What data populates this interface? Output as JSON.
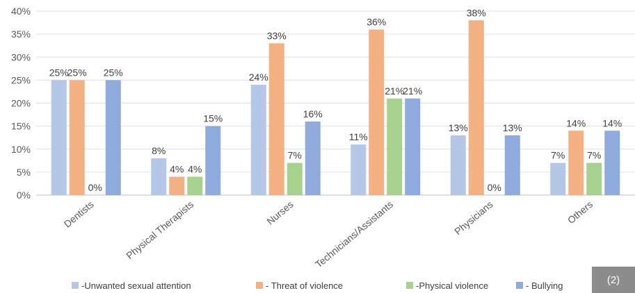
{
  "chart_data": {
    "type": "bar",
    "categories": [
      "Dentists",
      "Physical Therapists",
      "Nurses",
      "Technicians/Assistants",
      "Physicians",
      "Others"
    ],
    "series": [
      {
        "name": "-Unwanted sexual attention",
        "values": [
          25,
          8,
          24,
          11,
          13,
          7
        ],
        "labels": [
          "25%",
          "8%",
          "24%",
          "11%",
          "13%",
          "7%"
        ],
        "color": "#b4c7e7"
      },
      {
        "name": "- Threat of violence",
        "values": [
          25,
          4,
          33,
          36,
          38,
          14
        ],
        "labels": [
          "25%",
          "4%",
          "33%",
          "36%",
          "38%",
          "14%"
        ],
        "color": "#f4b183"
      },
      {
        "name": "-Physical violence",
        "values": [
          0,
          4,
          7,
          21,
          0,
          7
        ],
        "labels": [
          "0%",
          "4%",
          "7%",
          "21%",
          "0%",
          "7%"
        ],
        "color": "#a9d18e"
      },
      {
        "name": "- Bullying",
        "values": [
          25,
          15,
          16,
          21,
          13,
          14
        ],
        "labels": [
          "25%",
          "15%",
          "16%",
          "21%",
          "13%",
          "14%"
        ],
        "color": "#8faadc"
      }
    ],
    "ylim": [
      0,
      40
    ],
    "yticks": [
      "0%",
      "5%",
      "10%",
      "15%",
      "20%",
      "25%",
      "30%",
      "35%",
      "40%"
    ],
    "grid": true,
    "legend_position": "bottom"
  },
  "badge": "(2)"
}
